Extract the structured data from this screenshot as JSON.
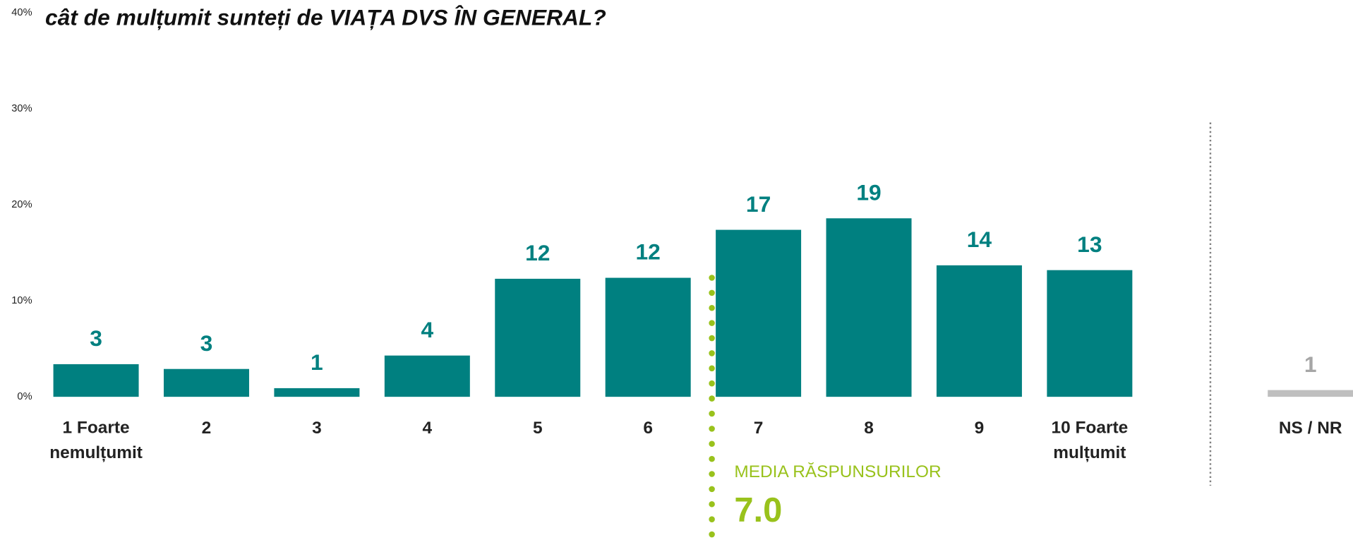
{
  "chart_data": {
    "type": "bar",
    "title": "cât de mulțumit sunteți de VIAȚA DVS ÎN GENERAL?",
    "categories": [
      "1 Foarte\nnemulțumit",
      "2",
      "3",
      "4",
      "5",
      "6",
      "7",
      "8",
      "9",
      "10 Foarte\nmulțumit",
      "NS / NR"
    ],
    "values": [
      3.4,
      2.9,
      0.9,
      4.3,
      12.3,
      12.4,
      17.4,
      18.6,
      13.7,
      13.2,
      0.7
    ],
    "value_labels": [
      "3",
      "3",
      "1",
      "4",
      "12",
      "12",
      "17",
      "19",
      "14",
      "13",
      "1"
    ],
    "colors": [
      "#008080",
      "#008080",
      "#008080",
      "#008080",
      "#008080",
      "#008080",
      "#008080",
      "#008080",
      "#008080",
      "#008080",
      "#bfbfbf"
    ],
    "label_colors": [
      "#008080",
      "#008080",
      "#008080",
      "#008080",
      "#008080",
      "#008080",
      "#008080",
      "#008080",
      "#008080",
      "#008080",
      "#a6a6a6"
    ],
    "ylim": [
      0,
      40
    ],
    "yticks": [
      {
        "value": 0,
        "label": "0%"
      },
      {
        "value": 10,
        "label": "10%"
      },
      {
        "value": 20,
        "label": "20%"
      },
      {
        "value": 30,
        "label": "30%"
      },
      {
        "value": 40,
        "label": "40%"
      }
    ],
    "annotations": [
      {
        "text": "MEDIA RĂSPUNSURILOR",
        "color": "#99c21c"
      },
      {
        "text": "7.0",
        "color": "#99c21c"
      }
    ]
  }
}
